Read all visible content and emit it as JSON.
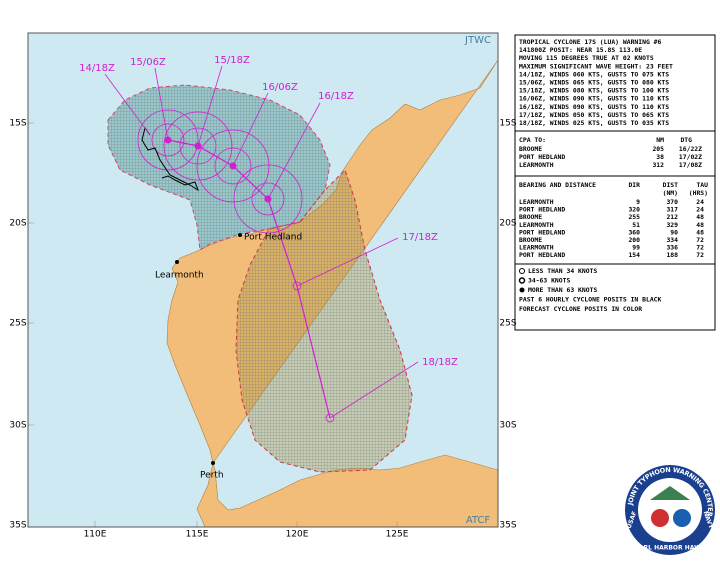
{
  "map": {
    "agency_top": "JTWC",
    "agency_bottom": "ATCF",
    "lat_labels": [
      "15S",
      "20S",
      "25S",
      "30S",
      "35S"
    ],
    "lon_labels": [
      "110E",
      "115E",
      "120E",
      "125E"
    ],
    "track_labels": [
      "14/18Z",
      "15/06Z",
      "15/18Z",
      "16/06Z",
      "16/18Z",
      "17/18Z",
      "18/18Z"
    ],
    "places": [
      "Port Hedland",
      "Learmonth",
      "Perth"
    ]
  },
  "warning": {
    "lines": [
      "TROPICAL CYCLONE 17S (LUA) WARNING #6",
      "141800Z POSIT: NEAR 15.8S 113.0E",
      "MOVING 115 DEGREES TRUE AT 02 KNOTS",
      "MAXIMUM SIGNIFICANT WAVE HEIGHT: 23 FEET",
      "14/18Z, WINDS 060 KTS, GUSTS TO 075 KTS",
      "15/06Z, WINDS 065 KTS, GUSTS TO 080 KTS",
      "15/18Z, WINDS 080 KTS, GUSTS TO 100 KTS",
      "16/06Z, WINDS 090 KTS, GUSTS TO 110 KTS",
      "16/18Z, WINDS 090 KTS, GUSTS TO 110 KTS",
      "17/18Z, WINDS 050 KTS, GUSTS TO 065 KTS",
      "18/18Z, WINDS 025 KTS, GUSTS TO 035 KTS"
    ]
  },
  "cpa": {
    "header": [
      "CPA TO:",
      "NM",
      "DTG"
    ],
    "rows": [
      [
        "BROOME",
        "205",
        "16/22Z"
      ],
      [
        "PORT HEDLAND",
        "38",
        "17/02Z"
      ],
      [
        "LEARMONTH",
        "312",
        "17/08Z"
      ]
    ]
  },
  "bearing": {
    "header": [
      "BEARING AND DISTANCE",
      "DIR",
      "DIST",
      "TAU"
    ],
    "subheader": [
      "(NM)",
      "(HRS)"
    ],
    "rows": [
      [
        "LEARMONTH",
        "9",
        "370",
        "24"
      ],
      [
        "PORT HEDLAND",
        "320",
        "317",
        "24"
      ],
      [
        "BROOME",
        "255",
        "212",
        "48"
      ],
      [
        "LEARMONTH",
        "51",
        "329",
        "48"
      ],
      [
        "PORT HEDLAND",
        "360",
        "90",
        "48"
      ],
      [
        "BROOME",
        "200",
        "334",
        "72"
      ],
      [
        "LEARMONTH",
        "99",
        "336",
        "72"
      ],
      [
        "PORT HEDLAND",
        "154",
        "188",
        "72"
      ]
    ]
  },
  "legend": [
    "LESS THAN 34 KNOTS",
    "34-63 KNOTS",
    "MORE THAN 63 KNOTS",
    "PAST 6 HOURLY CYCLONE POSITS IN BLACK",
    "FORECAST CYCLONE POSITS IN COLOR"
  ],
  "logo": {
    "ring": "JOINT TYPHOON WARNING CENTER",
    "bottom": "PEARL HARBOR HAWAII",
    "left": "USAF",
    "right": "NAVY"
  }
}
